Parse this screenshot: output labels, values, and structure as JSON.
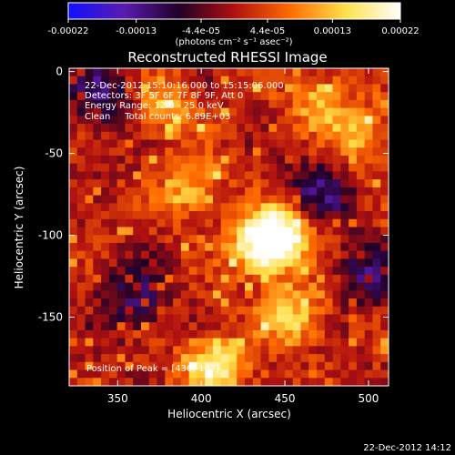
{
  "colorbar": {
    "ticks": [
      "-0.00022",
      "-0.00013",
      "-4.4e-05",
      "4.4e-05",
      "0.00013",
      "0.00022"
    ],
    "tick_values": [
      -0.00022,
      -0.00013,
      -4.4e-05,
      4.4e-05,
      0.00013,
      0.00022
    ],
    "range": [
      -0.00022,
      0.00022
    ],
    "unit_label": "(photons cm⁻² s⁻¹ asec⁻²)",
    "colors": [
      "#1010ff",
      "#5a1bb0",
      "#200028",
      "#b01010",
      "#ff6a00",
      "#ffe04a",
      "#ffffff"
    ]
  },
  "chart_data": {
    "type": "heatmap",
    "title": "Reconstructed RHESSI Image",
    "xlabel": "Heliocentric X (arcsec)",
    "ylabel": "Heliocentric Y (arcsec)",
    "xlim": [
      321,
      512
    ],
    "ylim": [
      -192,
      2
    ],
    "xticks": [
      350,
      400,
      450,
      500
    ],
    "yticks": [
      0,
      -50,
      -100,
      -150
    ],
    "annotations": [
      "22-Dec-2012 15:10:16.000 to 15:15:06.000",
      "Detectors: 3F 5F 6F 7F 8F 9F, Att 0",
      "Energy Range: 12.0 - 25.0 keV",
      "Clean     Total counts: 6.89E+03"
    ],
    "peak_label": "Position of Peak = [436,-107]",
    "peak": [
      436,
      -107
    ],
    "bright_regions": [
      {
        "x": 436,
        "y": -107,
        "level": 1.0
      },
      {
        "x": 452,
        "y": -97,
        "level": 0.75
      },
      {
        "x": 408,
        "y": -180,
        "level": 0.8
      },
      {
        "x": 455,
        "y": -150,
        "level": 0.6
      },
      {
        "x": 395,
        "y": -72,
        "level": 0.5
      },
      {
        "x": 495,
        "y": -40,
        "level": 0.55
      },
      {
        "x": 378,
        "y": -22,
        "level": 0.5
      },
      {
        "x": 470,
        "y": -18,
        "level": 0.45
      }
    ],
    "dark_regions": [
      {
        "x": 340,
        "y": -15,
        "level": -0.5
      },
      {
        "x": 470,
        "y": -75,
        "level": -0.5
      },
      {
        "x": 360,
        "y": -140,
        "level": -0.45
      },
      {
        "x": 500,
        "y": -125,
        "level": -0.4
      }
    ]
  },
  "timestamp": "22-Dec-2012 14:12"
}
